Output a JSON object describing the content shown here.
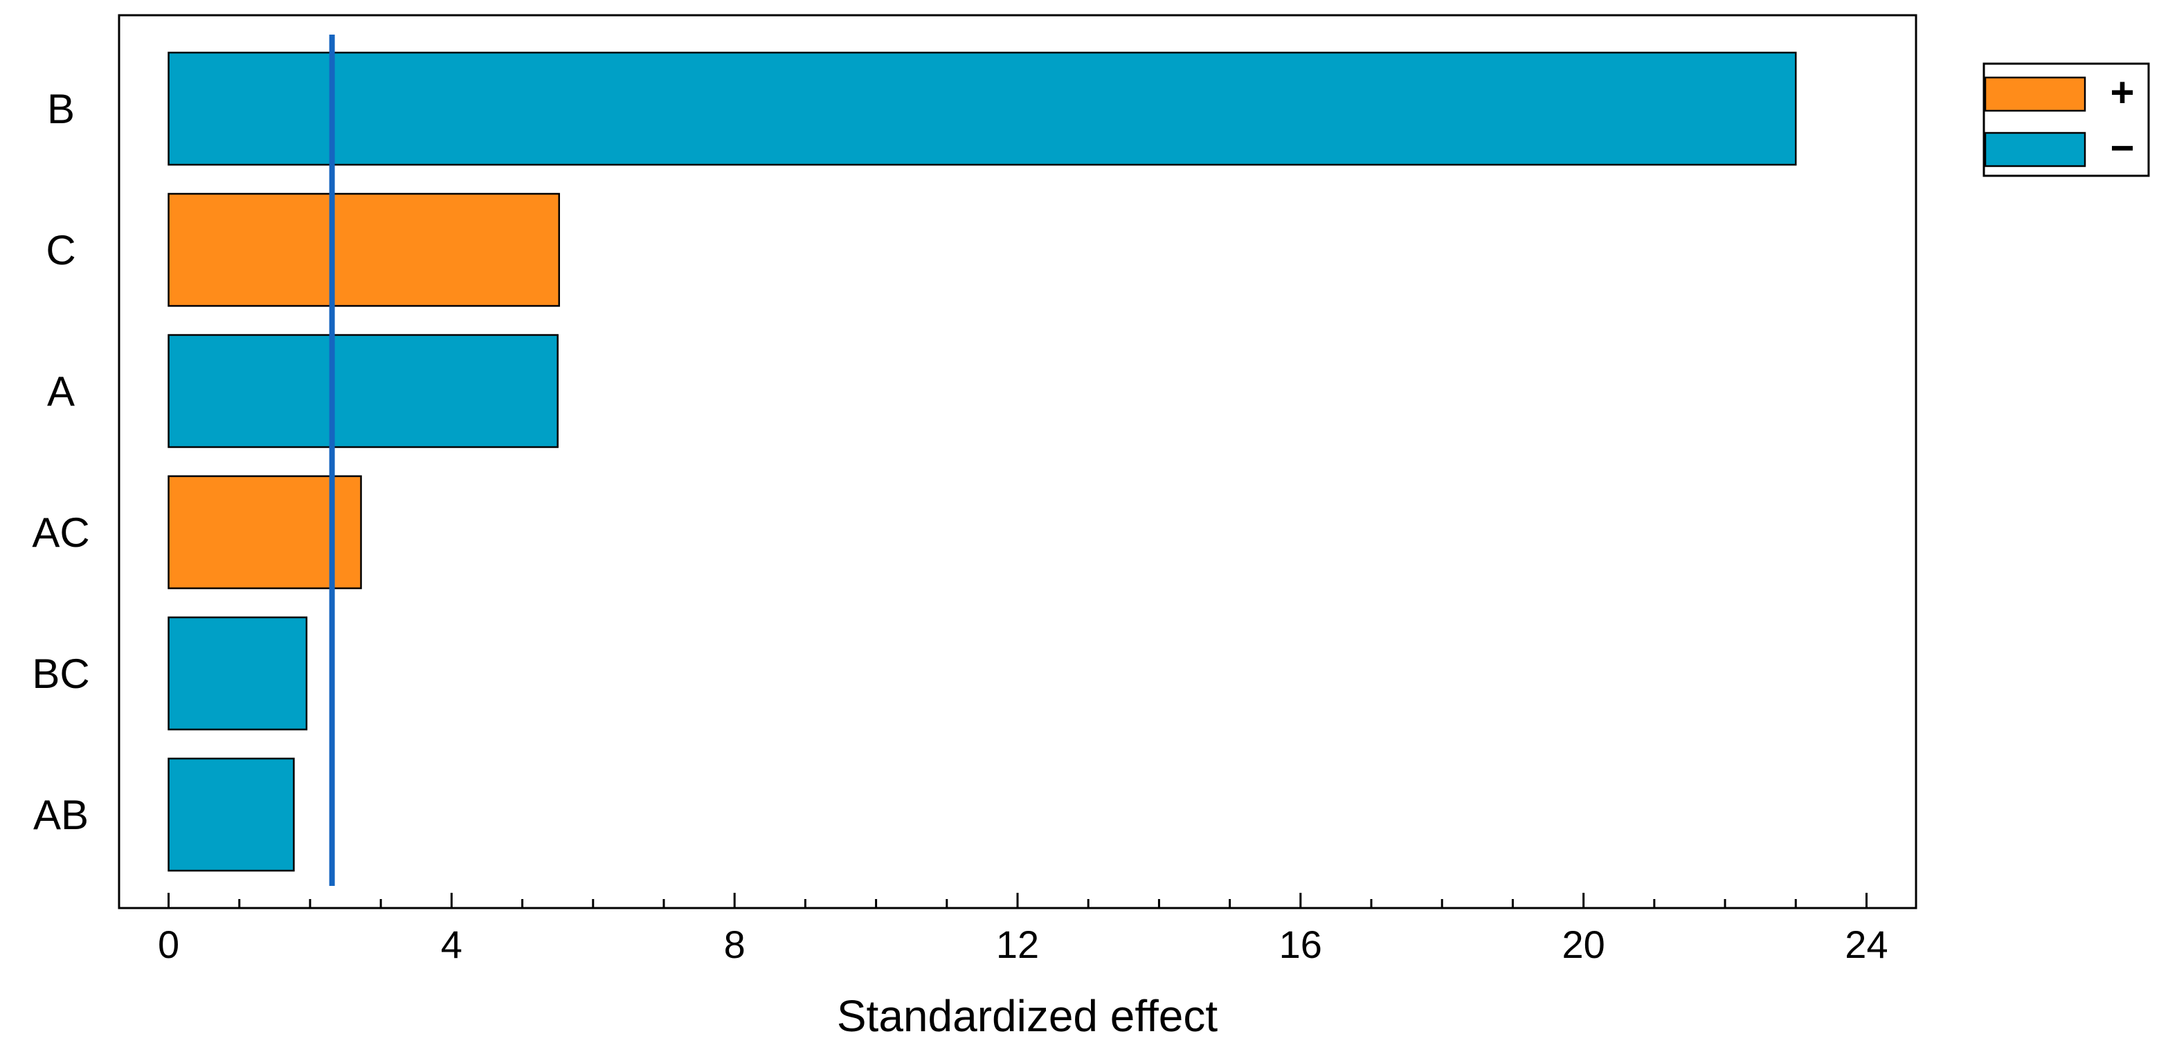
{
  "chart_data": {
    "type": "bar",
    "orientation": "horizontal",
    "title": "",
    "xlabel": "Standardized effect",
    "ylabel": "",
    "xlim": [
      -0.7,
      24.7
    ],
    "x_ticks": [
      0,
      4,
      8,
      12,
      16,
      20,
      24
    ],
    "x_minor_step": 1,
    "grid": false,
    "categories": [
      "B",
      "C",
      "A",
      "AC",
      "BC",
      "AB"
    ],
    "values": [
      23.0,
      5.52,
      5.5,
      2.72,
      1.95,
      1.77
    ],
    "signs": [
      "-",
      "+",
      "-",
      "+",
      "-",
      "-"
    ],
    "reference_line": {
      "x": 2.31,
      "color": "#1565C0"
    },
    "legend": {
      "placement": "top-right-outside",
      "entries": [
        {
          "label": "+",
          "sign": "+"
        },
        {
          "label": "−",
          "sign": "-"
        }
      ]
    },
    "colors": {
      "+": "#FF8C1A",
      "-": "#00A0C6",
      "edge": "#000000"
    }
  }
}
